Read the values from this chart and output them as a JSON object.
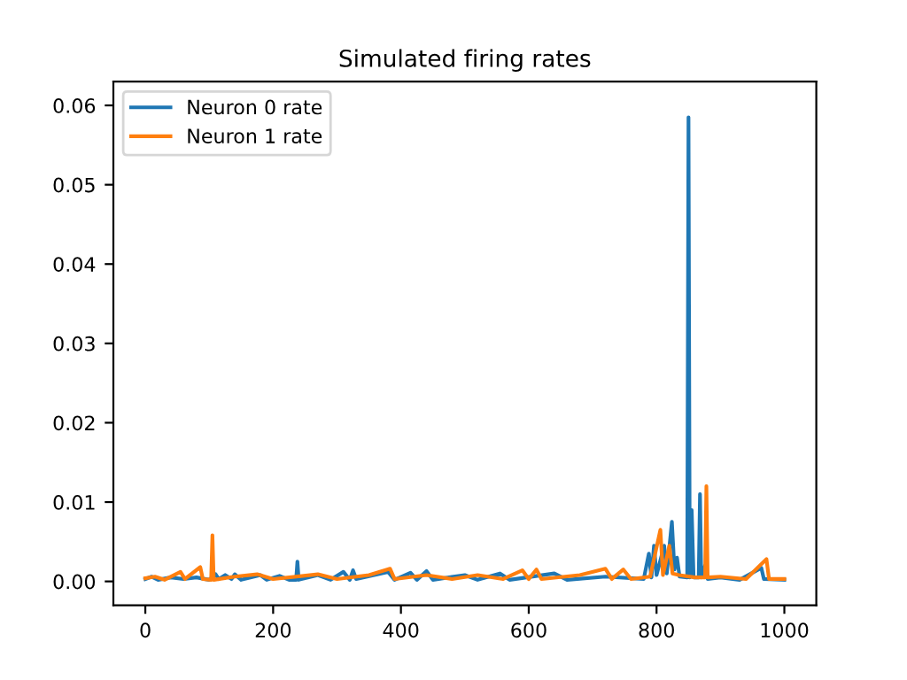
{
  "chart_data": {
    "type": "line",
    "title": "Simulated firing rates",
    "legend": "top left",
    "grid": false,
    "xlim": [
      -50,
      1050
    ],
    "xticks": [
      0,
      200,
      400,
      600,
      800,
      1000
    ],
    "ylim": [
      -0.003,
      0.063
    ],
    "yticks": [
      {
        "value": 0,
        "label": "0.00"
      },
      {
        "value": 0.01,
        "label": "0.01"
      },
      0.02,
      0.03,
      0.04,
      0.05,
      0.06
    ],
    "series": [
      {
        "name": "Neuron 0 rate",
        "color": "#1f77b4",
        "x": [
          0,
          10,
          20,
          40,
          60,
          80,
          100,
          110,
          115,
          125,
          135,
          140,
          150,
          180,
          190,
          210,
          225,
          236,
          238,
          240,
          270,
          290,
          310,
          320,
          325,
          330,
          380,
          390,
          415,
          425,
          440,
          450,
          500,
          520,
          555,
          570,
          640,
          660,
          720,
          780,
          788,
          792,
          796,
          800,
          812,
          816,
          824,
          828,
          832,
          836,
          848,
          850,
          852,
          855,
          858,
          866,
          868,
          870,
          876,
          880,
          900,
          930,
          964,
          968,
          1000
        ],
        "values": [
          0.0003,
          0.0006,
          0.0002,
          0.0005,
          0.0003,
          0.0005,
          0.0002,
          0.0009,
          0.0003,
          0.0008,
          0.0003,
          0.0009,
          0.0002,
          0.0008,
          0.0002,
          0.0007,
          0.0002,
          0.0002,
          0.0025,
          0.0002,
          0.0008,
          0.0002,
          0.0012,
          0.0002,
          0.0014,
          0.0003,
          0.0012,
          0.0002,
          0.0011,
          0.0002,
          0.0013,
          0.0002,
          0.0008,
          0.0002,
          0.001,
          0.0002,
          0.001,
          0.0002,
          0.0006,
          0.0003,
          0.0035,
          0.0005,
          0.0045,
          0.0008,
          0.0045,
          0.001,
          0.0075,
          0.0015,
          0.003,
          0.0006,
          0.0005,
          0.0585,
          0.0005,
          0.009,
          0.0005,
          0.0005,
          0.011,
          0.0005,
          0.002,
          0.0003,
          0.0005,
          0.0002,
          0.0017,
          0.0003,
          0.0002
        ]
      },
      {
        "name": "Neuron 1 rate",
        "color": "#ff7f0e",
        "x": [
          0,
          15,
          30,
          55,
          62,
          86,
          90,
          103,
          105,
          107,
          140,
          175,
          200,
          270,
          300,
          350,
          383,
          390,
          440,
          480,
          520,
          560,
          590,
          600,
          612,
          620,
          680,
          720,
          730,
          748,
          760,
          790,
          806,
          810,
          820,
          825,
          835,
          860,
          876,
          878,
          880,
          900,
          940,
          972,
          976,
          1000
        ],
        "values": [
          0.0004,
          0.0006,
          0.0002,
          0.0012,
          0.0003,
          0.0018,
          0.0003,
          0.0002,
          0.0058,
          0.0002,
          0.0006,
          0.0009,
          0.0003,
          0.0009,
          0.0003,
          0.0008,
          0.0016,
          0.0003,
          0.0008,
          0.0003,
          0.0008,
          0.0003,
          0.0014,
          0.0003,
          0.0015,
          0.0003,
          0.0008,
          0.0016,
          0.0003,
          0.0015,
          0.0003,
          0.0006,
          0.0065,
          0.0008,
          0.0045,
          0.001,
          0.0008,
          0.0005,
          0.0005,
          0.012,
          0.0005,
          0.0006,
          0.0003,
          0.0028,
          0.0003,
          0.0003
        ]
      }
    ]
  }
}
